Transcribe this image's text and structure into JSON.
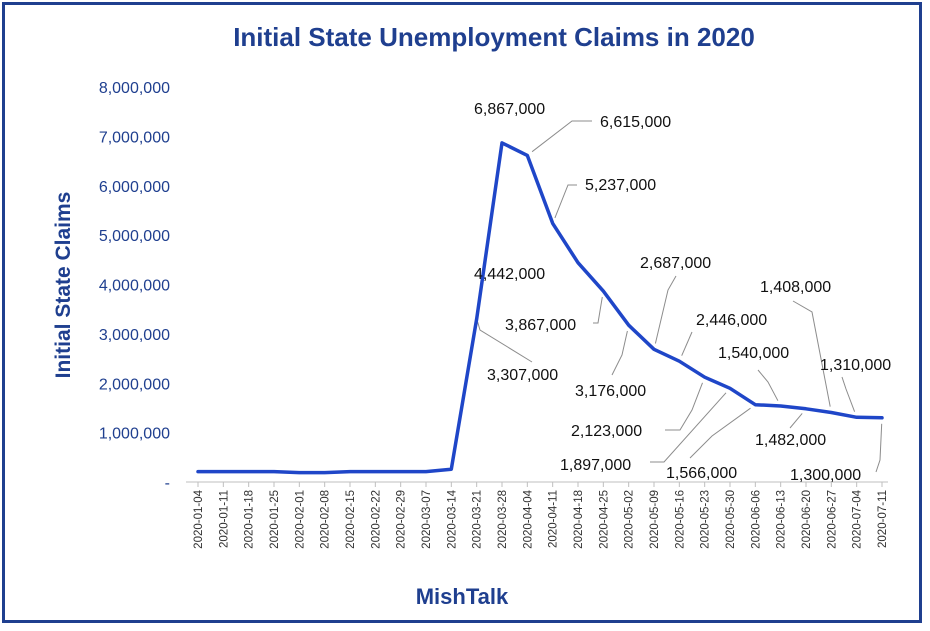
{
  "chart_data": {
    "type": "line",
    "title": "Initial State Unemployment Claims in 2020",
    "ylabel": "Initial  State Claims",
    "footer": "MishTalk",
    "ylim": [
      0,
      8000000
    ],
    "yticks": [
      {
        "value": 0,
        "label": "-"
      },
      {
        "value": 1000000,
        "label": "1,000,000"
      },
      {
        "value": 2000000,
        "label": "2,000,000"
      },
      {
        "value": 3000000,
        "label": "3,000,000"
      },
      {
        "value": 4000000,
        "label": "4,000,000"
      },
      {
        "value": 5000000,
        "label": "5,000,000"
      },
      {
        "value": 6000000,
        "label": "6,000,000"
      },
      {
        "value": 7000000,
        "label": "7,000,000"
      },
      {
        "value": 8000000,
        "label": "8,000,000"
      }
    ],
    "grid": false,
    "line_color": "#1f46c8",
    "categories": [
      "2020-01-04",
      "2020-01-11",
      "2020-01-18",
      "2020-01-25",
      "2020-02-01",
      "2020-02-08",
      "2020-02-15",
      "2020-02-22",
      "2020-02-29",
      "2020-03-07",
      "2020-03-14",
      "2020-03-21",
      "2020-03-28",
      "2020-04-04",
      "2020-04-11",
      "2020-04-18",
      "2020-04-25",
      "2020-05-02",
      "2020-05-09",
      "2020-05-16",
      "2020-05-23",
      "2020-05-30",
      "2020-06-06",
      "2020-06-13",
      "2020-06-20",
      "2020-06-27",
      "2020-07-04",
      "2020-07-11"
    ],
    "values": [
      210000,
      210000,
      210000,
      210000,
      190000,
      190000,
      210000,
      210000,
      210000,
      210000,
      260000,
      3307000,
      6867000,
      6615000,
      5237000,
      4442000,
      3867000,
      3176000,
      2687000,
      2446000,
      2123000,
      1897000,
      1566000,
      1540000,
      1482000,
      1408000,
      1310000,
      1300000
    ],
    "labels": [
      {
        "index": 11,
        "text": "3,307,000"
      },
      {
        "index": 12,
        "text": "6,867,000"
      },
      {
        "index": 13,
        "text": "6,615,000"
      },
      {
        "index": 14,
        "text": "5,237,000"
      },
      {
        "index": 15,
        "text": "4,442,000"
      },
      {
        "index": 16,
        "text": "3,867,000"
      },
      {
        "index": 17,
        "text": "3,176,000"
      },
      {
        "index": 18,
        "text": "2,687,000"
      },
      {
        "index": 19,
        "text": "2,446,000"
      },
      {
        "index": 20,
        "text": "2,123,000"
      },
      {
        "index": 21,
        "text": "1,897,000"
      },
      {
        "index": 22,
        "text": "1,566,000"
      },
      {
        "index": 23,
        "text": "1,540,000"
      },
      {
        "index": 24,
        "text": "1,482,000"
      },
      {
        "index": 25,
        "text": "1,408,000"
      },
      {
        "index": 26,
        "text": "1,310,000"
      },
      {
        "index": 27,
        "text": "1,300,000"
      }
    ]
  }
}
